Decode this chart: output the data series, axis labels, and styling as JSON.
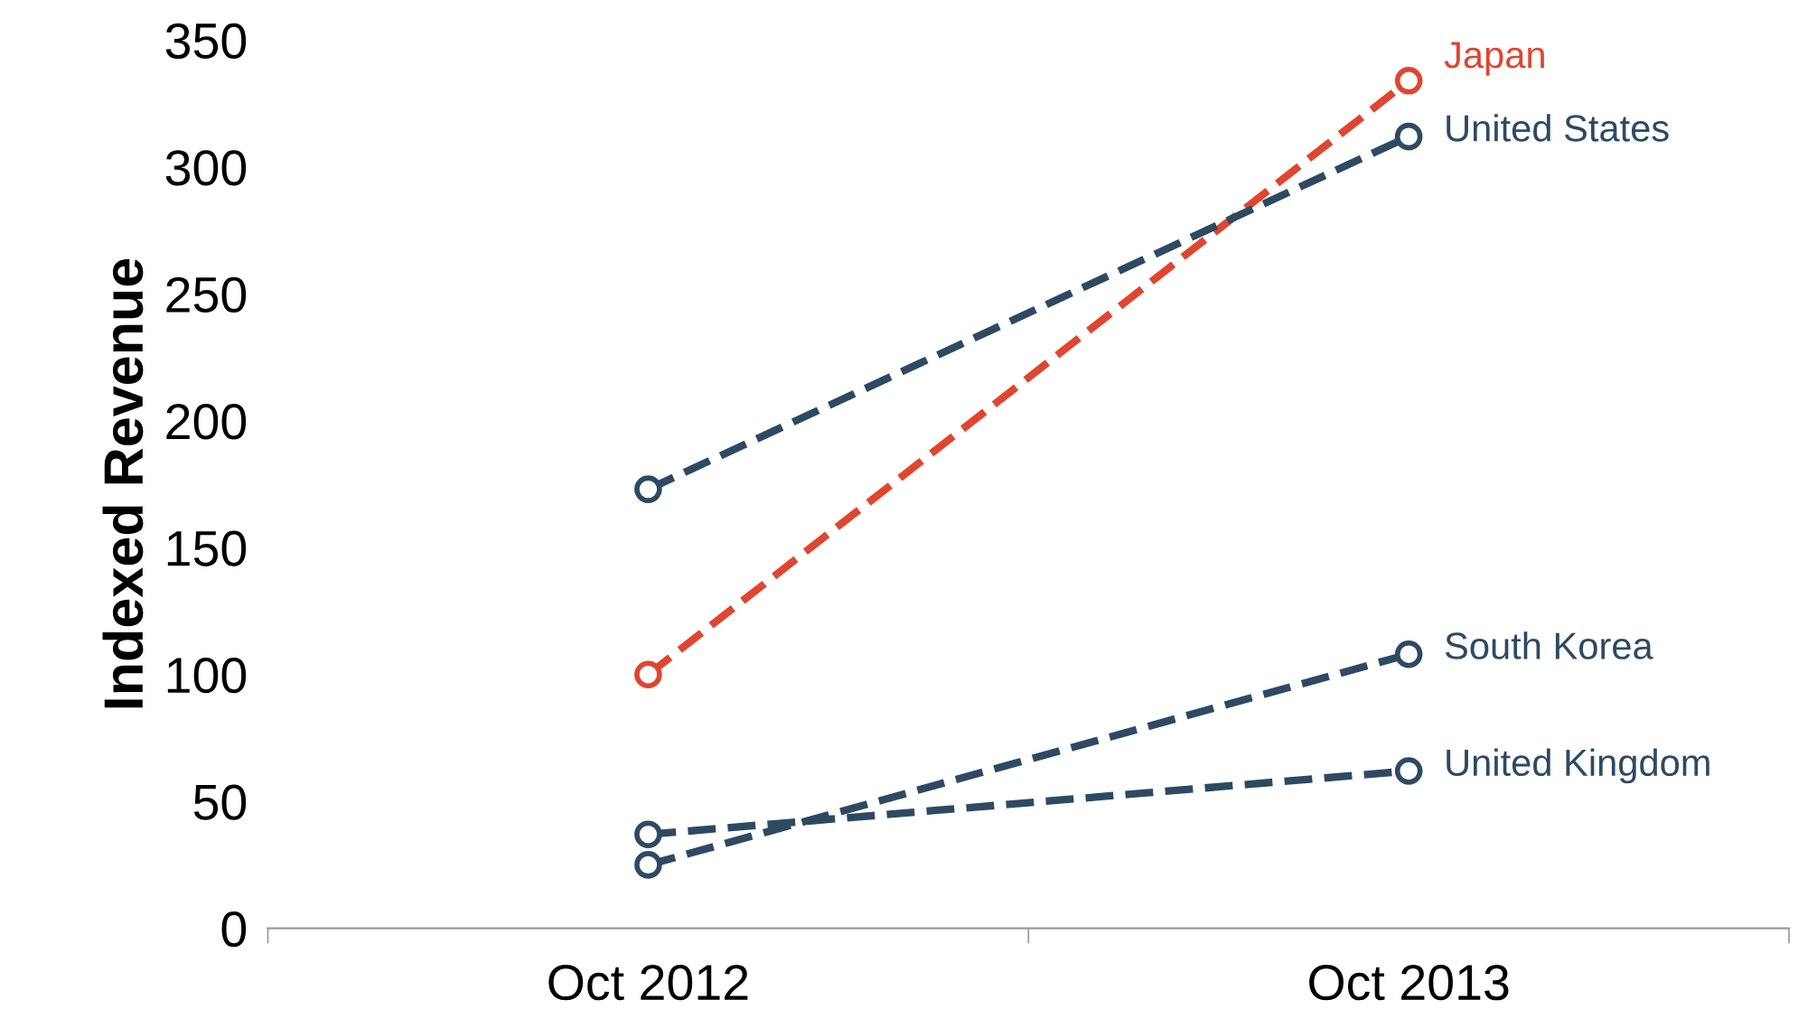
{
  "chart_data": {
    "type": "line",
    "ylabel": "Indexed Revenue",
    "categories": [
      "Oct 2012",
      "Oct 2013"
    ],
    "series": [
      {
        "name": "Japan",
        "color": "#e0452f",
        "values": [
          100,
          334
        ]
      },
      {
        "name": "United States",
        "color": "#2d4a63",
        "values": [
          173,
          312
        ]
      },
      {
        "name": "South Korea",
        "color": "#2d4a63",
        "values": [
          25,
          108
        ]
      },
      {
        "name": "United Kingdom",
        "color": "#2d4a63",
        "values": [
          37,
          62
        ]
      }
    ],
    "ylim": [
      0,
      350
    ],
    "yticks": [
      0,
      50,
      100,
      150,
      200,
      250,
      300,
      350
    ],
    "grid": false,
    "legend": false,
    "marker": "circle",
    "line_style": "dashed"
  }
}
